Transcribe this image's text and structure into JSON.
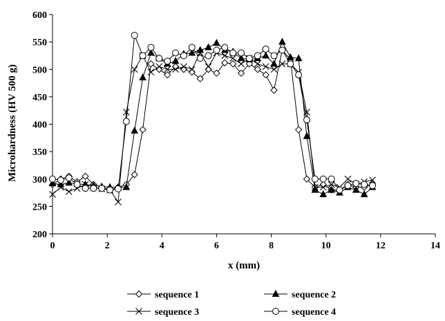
{
  "chart_data": {
    "type": "line",
    "xlabel": "x (mm)",
    "ylabel": "Microhardness (HV 500 g)",
    "xlim": [
      0,
      14
    ],
    "ylim": [
      200,
      600
    ],
    "xticks": [
      0,
      2,
      4,
      6,
      8,
      10,
      12,
      14
    ],
    "yticks": [
      200,
      250,
      300,
      350,
      400,
      450,
      500,
      550,
      600
    ],
    "grid": false,
    "legend_position": "bottom",
    "series": [
      {
        "name": "sequence 1",
        "marker": "diamond-open",
        "x": [
          0,
          0.3,
          0.6,
          0.9,
          1.2,
          1.5,
          1.8,
          2.1,
          2.4,
          2.7,
          3.0,
          3.3,
          3.6,
          3.9,
          4.2,
          4.5,
          4.8,
          5.1,
          5.4,
          5.7,
          6.0,
          6.3,
          6.6,
          6.9,
          7.2,
          7.5,
          7.8,
          8.1,
          8.4,
          8.7,
          9.0,
          9.3,
          9.6,
          9.9,
          10.2,
          10.5,
          10.8,
          11.1,
          11.4,
          11.7
        ],
        "y": [
          290,
          300,
          305,
          295,
          305,
          290,
          285,
          280,
          285,
          290,
          308,
          390,
          510,
          500,
          490,
          505,
          500,
          495,
          483,
          500,
          493,
          512,
          510,
          493,
          510,
          500,
          490,
          462,
          535,
          518,
          390,
          300,
          285,
          290,
          280,
          280,
          290,
          285,
          285,
          290
        ]
      },
      {
        "name": "sequence 2",
        "marker": "triangle-filled",
        "x": [
          0,
          0.3,
          0.6,
          0.9,
          1.2,
          1.5,
          1.8,
          2.1,
          2.4,
          2.7,
          3.0,
          3.3,
          3.6,
          3.9,
          4.2,
          4.5,
          4.8,
          5.1,
          5.4,
          5.7,
          6.0,
          6.3,
          6.6,
          6.9,
          7.2,
          7.5,
          7.8,
          8.1,
          8.4,
          8.7,
          9.0,
          9.3,
          9.6,
          9.9,
          10.2,
          10.5,
          10.8,
          11.1,
          11.4,
          11.7
        ],
        "y": [
          292,
          290,
          293,
          291,
          290,
          288,
          286,
          285,
          285,
          285,
          388,
          485,
          530,
          520,
          510,
          515,
          528,
          530,
          535,
          540,
          548,
          535,
          532,
          520,
          518,
          520,
          525,
          510,
          550,
          522,
          520,
          378,
          280,
          272,
          280,
          275,
          285,
          280,
          272,
          285
        ]
      },
      {
        "name": "sequence 3",
        "marker": "x",
        "x": [
          0,
          0.3,
          0.6,
          0.9,
          1.2,
          1.5,
          1.8,
          2.1,
          2.4,
          2.7,
          3.0,
          3.3,
          3.6,
          3.9,
          4.2,
          4.5,
          4.8,
          5.1,
          5.4,
          5.7,
          6.0,
          6.3,
          6.6,
          6.9,
          7.2,
          7.5,
          7.8,
          8.1,
          8.4,
          8.7,
          9.0,
          9.3,
          9.6,
          9.9,
          10.2,
          10.5,
          10.8,
          11.1,
          11.4,
          11.7
        ],
        "y": [
          272,
          285,
          277,
          283,
          290,
          285,
          282,
          280,
          258,
          422,
          500,
          525,
          495,
          505,
          500,
          500,
          505,
          500,
          530,
          505,
          530,
          525,
          520,
          510,
          520,
          510,
          505,
          500,
          510,
          510,
          495,
          422,
          285,
          285,
          290,
          285,
          300,
          290,
          295,
          298
        ]
      },
      {
        "name": "sequence 4",
        "marker": "circle-open",
        "x": [
          0,
          0.3,
          0.6,
          0.9,
          1.2,
          1.5,
          1.8,
          2.1,
          2.4,
          2.7,
          3.0,
          3.3,
          3.6,
          3.9,
          4.2,
          4.5,
          4.8,
          5.1,
          5.4,
          5.7,
          6.0,
          6.3,
          6.6,
          6.9,
          7.2,
          7.5,
          7.8,
          8.1,
          8.4,
          8.7,
          9.0,
          9.3,
          9.6,
          9.9,
          10.2,
          10.5,
          10.8,
          11.1,
          11.4,
          11.7
        ],
        "y": [
          300,
          298,
          302,
          290,
          283,
          283,
          283,
          280,
          282,
          405,
          562,
          525,
          540,
          520,
          515,
          530,
          525,
          540,
          520,
          525,
          535,
          540,
          530,
          530,
          520,
          525,
          537,
          525,
          535,
          510,
          490,
          408,
          300,
          300,
          300,
          280,
          288,
          292,
          290,
          288
        ]
      }
    ]
  }
}
